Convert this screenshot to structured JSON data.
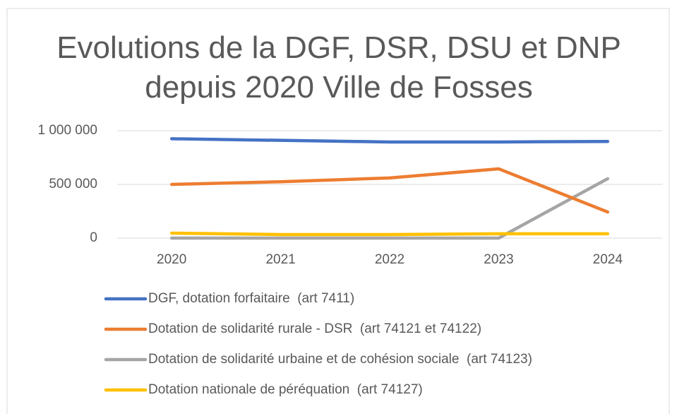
{
  "chart_data": {
    "type": "line",
    "title": "Evolutions de la DGF, DSR, DSU et DNP depuis 2020 Ville de Fosses",
    "categories": [
      "2020",
      "2021",
      "2022",
      "2023",
      "2024"
    ],
    "series": [
      {
        "name": "DGF, dotation forfaitaire  (art 7411)",
        "color": "#4472c4",
        "values": [
          925000,
          910000,
          895000,
          895000,
          900000
        ]
      },
      {
        "name": "Dotation de solidarité rurale - DSR  (art 74121 et 74122)",
        "color": "#ed7d31",
        "values": [
          500000,
          525000,
          560000,
          645000,
          243000
        ]
      },
      {
        "name": "Dotation de solidarité urbaine et de cohésion sociale  (art 74123)",
        "color": "#a5a5a5",
        "values": [
          0,
          0,
          0,
          0,
          553000
        ]
      },
      {
        "name": "Dotation nationale de péréquation  (art 74127)",
        "color": "#ffc000",
        "values": [
          46000,
          33000,
          33000,
          40000,
          40000
        ]
      }
    ],
    "ylim": [
      0,
      1000000
    ],
    "yticks": [
      {
        "value": 0,
        "label": "0"
      },
      {
        "value": 500000,
        "label": "500 000"
      },
      {
        "value": 1000000,
        "label": "1 000 000"
      }
    ],
    "grid": true,
    "legend": "bottom"
  }
}
